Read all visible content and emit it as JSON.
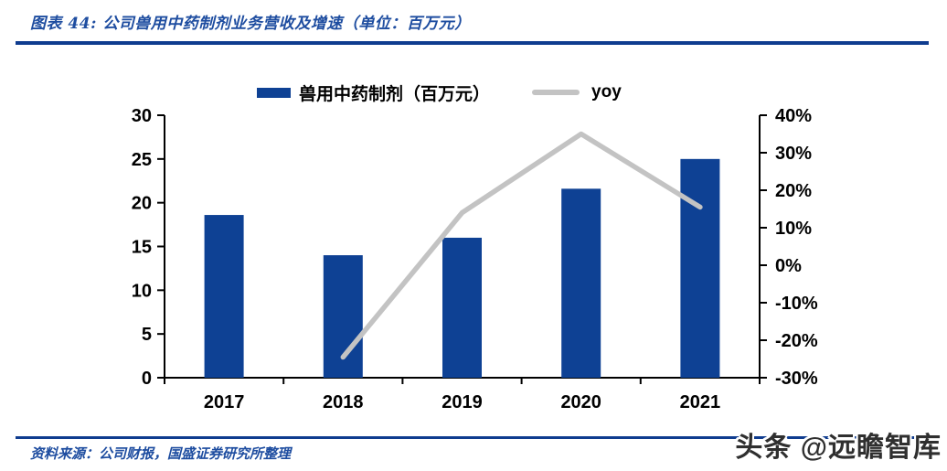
{
  "header": {
    "title": "图表 44:  公司兽用中药制剂业务营收及增速（单位：百万元）"
  },
  "legend": {
    "bar_label": "兽用中药制剂（百万元）",
    "line_label": "yoy"
  },
  "colors": {
    "bar": "#0e4194",
    "line": "#c3c3c3",
    "accent_rule": "#0f3c8f",
    "caption_text": "#1e4da0",
    "axis": "#000000",
    "watermark": "#2f2f2f"
  },
  "footer": {
    "source": "资料来源：公司财报，国盛证券研究所整理",
    "watermark": "头条 @远瞻智库"
  },
  "chart_data": {
    "type": "bar",
    "title": "公司兽用中药制剂业务营收及增速",
    "unit": "百万元",
    "categories": [
      "2017",
      "2018",
      "2019",
      "2020",
      "2021"
    ],
    "series": [
      {
        "name": "兽用中药制剂（百万元）",
        "type": "bar",
        "axis": "left",
        "values": [
          18.6,
          14.0,
          16.0,
          21.6,
          25.0
        ]
      },
      {
        "name": "yoy",
        "type": "line",
        "axis": "right",
        "values": [
          null,
          -24.5,
          14.0,
          35.0,
          15.5
        ]
      }
    ],
    "left_axis": {
      "min": 0,
      "max": 30,
      "step": 5,
      "tick_labels": [
        "0",
        "5",
        "10",
        "15",
        "20",
        "25",
        "30"
      ]
    },
    "right_axis": {
      "min": -30,
      "max": 40,
      "step": 10,
      "tick_labels": [
        "-30%",
        "-20%",
        "-10%",
        "0%",
        "10%",
        "20%",
        "30%",
        "40%"
      ]
    },
    "grid": false,
    "legend_position": "top"
  }
}
